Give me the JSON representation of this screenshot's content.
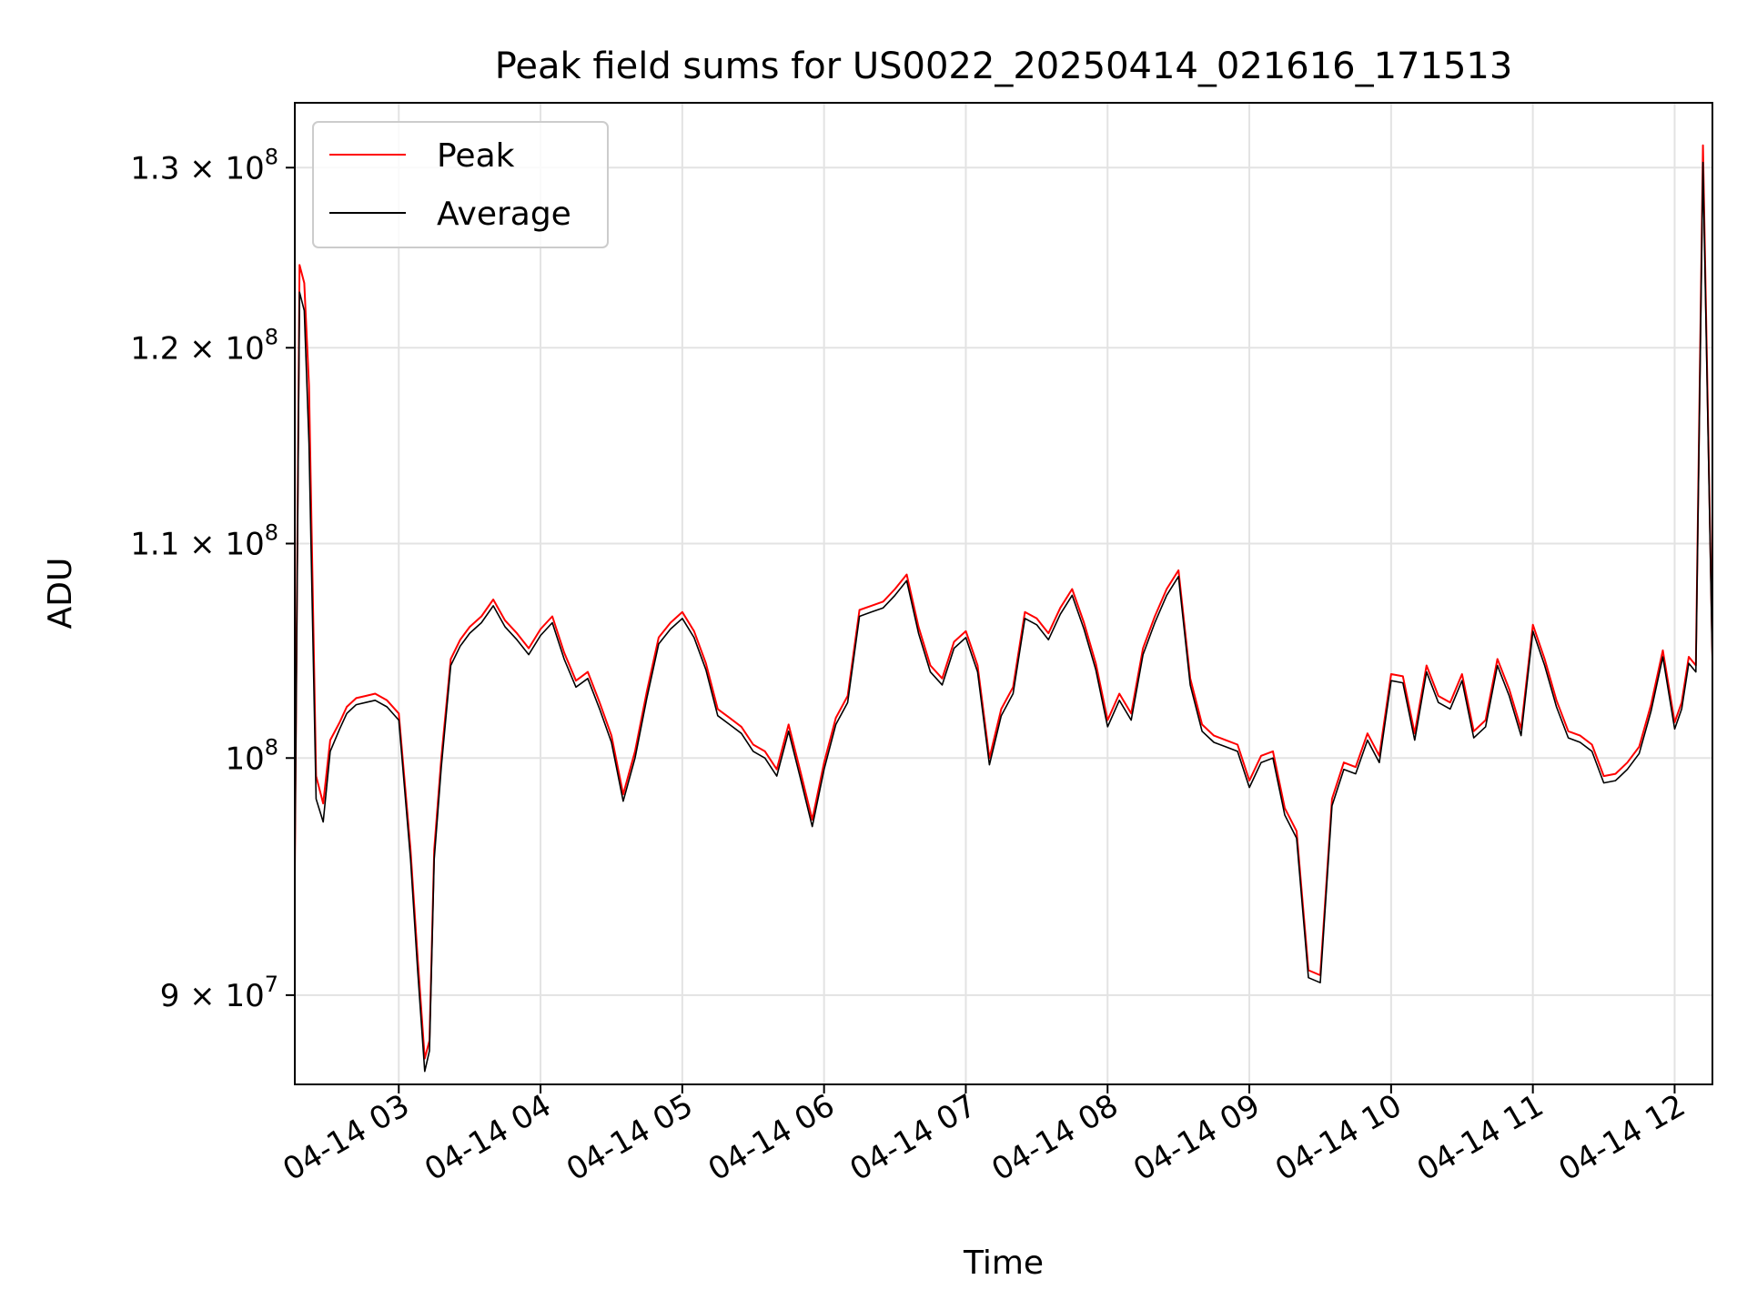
{
  "chart_data": {
    "type": "line",
    "title": "Peak field sums for US0022_20250414_021616_171513",
    "xlabel": "Time",
    "ylabel": "ADU",
    "yscale": "log",
    "xlim": [
      "2025-04-14 02:16",
      "2025-04-14 12:16"
    ],
    "ylim": [
      86500000,
      133800000
    ],
    "grid": true,
    "legend_position": "upper-left",
    "x_ticks": [
      "04-14 03",
      "04-14 04",
      "04-14 05",
      "04-14 06",
      "04-14 07",
      "04-14 08",
      "04-14 09",
      "04-14 10",
      "04-14 11",
      "04-14 12"
    ],
    "y_ticks": [
      {
        "value": 90000000,
        "mantissa": "9",
        "exp": "7"
      },
      {
        "value": 100000000,
        "mantissa": "",
        "exp": "8"
      },
      {
        "value": 110000000,
        "mantissa": "1.1",
        "exp": "8"
      },
      {
        "value": 120000000,
        "mantissa": "1.2",
        "exp": "8"
      },
      {
        "value": 130000000,
        "mantissa": "1.3",
        "exp": "8"
      }
    ],
    "x": [
      "02:16",
      "02:18",
      "02:20",
      "02:22",
      "02:25",
      "02:28",
      "02:31",
      "02:35",
      "02:38",
      "02:42",
      "02:46",
      "02:50",
      "02:55",
      "03:00",
      "03:05",
      "03:08",
      "03:11",
      "03:13",
      "03:15",
      "03:18",
      "03:22",
      "03:26",
      "03:30",
      "03:35",
      "03:40",
      "03:45",
      "03:50",
      "03:55",
      "04:00",
      "04:05",
      "04:10",
      "04:15",
      "04:20",
      "04:25",
      "04:30",
      "04:35",
      "04:40",
      "04:45",
      "04:50",
      "04:55",
      "05:00",
      "05:05",
      "05:10",
      "05:15",
      "05:20",
      "05:25",
      "05:30",
      "05:35",
      "05:40",
      "05:45",
      "05:50",
      "05:55",
      "06:00",
      "06:05",
      "06:10",
      "06:15",
      "06:20",
      "06:25",
      "06:30",
      "06:35",
      "06:40",
      "06:45",
      "06:50",
      "06:55",
      "07:00",
      "07:05",
      "07:10",
      "07:15",
      "07:20",
      "07:25",
      "07:30",
      "07:35",
      "07:40",
      "07:45",
      "07:50",
      "07:55",
      "08:00",
      "08:05",
      "08:10",
      "08:15",
      "08:20",
      "08:25",
      "08:30",
      "08:35",
      "08:40",
      "08:45",
      "08:50",
      "08:55",
      "09:00",
      "09:05",
      "09:10",
      "09:15",
      "09:20",
      "09:25",
      "09:30",
      "09:35",
      "09:40",
      "09:45",
      "09:50",
      "09:55",
      "10:00",
      "10:05",
      "10:10",
      "10:15",
      "10:20",
      "10:25",
      "10:30",
      "10:35",
      "10:40",
      "10:45",
      "10:50",
      "10:55",
      "11:00",
      "11:05",
      "11:10",
      "11:15",
      "11:20",
      "11:25",
      "11:30",
      "11:35",
      "11:40",
      "11:45",
      "11:50",
      "11:55",
      "12:00",
      "12:03",
      "12:06",
      "12:09",
      "12:12",
      "12:16"
    ],
    "series": [
      {
        "name": "Peak",
        "color": "#ff0000",
        "values": [
          95000000,
          124500000,
          123500000,
          118000000,
          99200000,
          98000000,
          100800000,
          101600000,
          102300000,
          102700000,
          102800000,
          102900000,
          102600000,
          102000000,
          96000000,
          91500000,
          87500000,
          88200000,
          96000000,
          100000000,
          104500000,
          105400000,
          106000000,
          106500000,
          107300000,
          106300000,
          105700000,
          105000000,
          105900000,
          106500000,
          104800000,
          103500000,
          103900000,
          102500000,
          101000000,
          98400000,
          100300000,
          103000000,
          105500000,
          106200000,
          106700000,
          105800000,
          104300000,
          102200000,
          101800000,
          101400000,
          100600000,
          100300000,
          99500000,
          101500000,
          99400000,
          97300000,
          99800000,
          101800000,
          102800000,
          106800000,
          107000000,
          107200000,
          107800000,
          108500000,
          106000000,
          104200000,
          103600000,
          105300000,
          105800000,
          104200000,
          100000000,
          102200000,
          103200000,
          106700000,
          106400000,
          105700000,
          106900000,
          107800000,
          106200000,
          104300000,
          101700000,
          102900000,
          102000000,
          105000000,
          106500000,
          107800000,
          108700000,
          103600000,
          101500000,
          101000000,
          100800000,
          100600000,
          99000000,
          100100000,
          100300000,
          97800000,
          96800000,
          91000000,
          90800000,
          98200000,
          99800000,
          99600000,
          101100000,
          100100000,
          103800000,
          103700000,
          101100000,
          104200000,
          102800000,
          102500000,
          103800000,
          101200000,
          101700000,
          104500000,
          103100000,
          101300000,
          106100000,
          104500000,
          102600000,
          101200000,
          101000000,
          100600000,
          99200000,
          99300000,
          99800000,
          100500000,
          102400000,
          104900000,
          101600000,
          102500000,
          104600000,
          104200000,
          131300000,
          104500000
        ]
      },
      {
        "name": "Average",
        "color": "#000000",
        "values": [
          95000000,
          123000000,
          122000000,
          115000000,
          98200000,
          97200000,
          100300000,
          101300000,
          102000000,
          102400000,
          102500000,
          102600000,
          102300000,
          101700000,
          95600000,
          91000000,
          87000000,
          87800000,
          95600000,
          99600000,
          104200000,
          105100000,
          105700000,
          106200000,
          107000000,
          106000000,
          105400000,
          104700000,
          105600000,
          106200000,
          104500000,
          103200000,
          103600000,
          102200000,
          100700000,
          98100000,
          100000000,
          102700000,
          105200000,
          105900000,
          106400000,
          105500000,
          104000000,
          101900000,
          101500000,
          101100000,
          100300000,
          100000000,
          99200000,
          101200000,
          99100000,
          97000000,
          99500000,
          101500000,
          102500000,
          106500000,
          106700000,
          106900000,
          107500000,
          108200000,
          105700000,
          103900000,
          103300000,
          105000000,
          105500000,
          103900000,
          99700000,
          101900000,
          102900000,
          106400000,
          106100000,
          105400000,
          106600000,
          107500000,
          105900000,
          104000000,
          101400000,
          102600000,
          101700000,
          104700000,
          106200000,
          107500000,
          108400000,
          103300000,
          101200000,
          100700000,
          100500000,
          100300000,
          98700000,
          99800000,
          100000000,
          97500000,
          96500000,
          90700000,
          90500000,
          97900000,
          99500000,
          99300000,
          100800000,
          99800000,
          103500000,
          103400000,
          100800000,
          103900000,
          102500000,
          102200000,
          103500000,
          100900000,
          101400000,
          104200000,
          102800000,
          101000000,
          105800000,
          104200000,
          102300000,
          100900000,
          100700000,
          100300000,
          98900000,
          99000000,
          99500000,
          100200000,
          102100000,
          104600000,
          101300000,
          102200000,
          104300000,
          103900000,
          130300000,
          104200000
        ]
      }
    ]
  }
}
